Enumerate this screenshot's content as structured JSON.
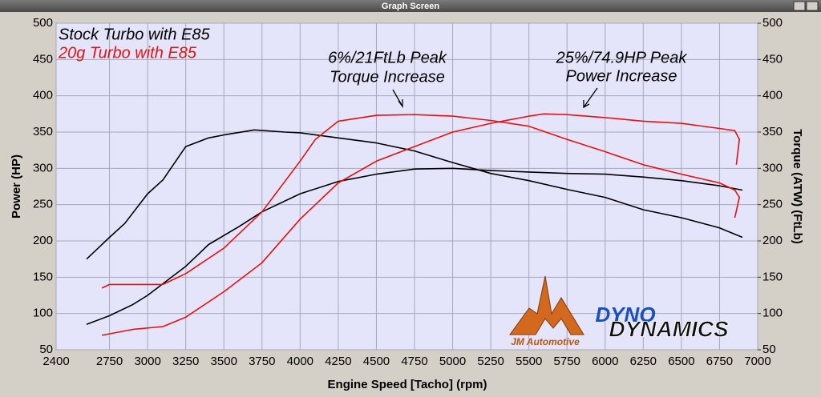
{
  "window_title": "Graph Screen",
  "logo": {
    "company": "JM Automotive",
    "brand_top": "DYNO",
    "brand_bottom": "DYNAMICS"
  },
  "chart_data": {
    "type": "line",
    "x_label": "Engine Speed [Tacho] (rpm)",
    "y_label": "Power (HP)",
    "y2_label": "Torque (ATW) (FtLb)",
    "xlim": [
      2400,
      7000
    ],
    "xticks": [
      2400,
      2750,
      3000,
      3250,
      3500,
      3750,
      4000,
      4250,
      4500,
      4750,
      5000,
      5250,
      5500,
      5750,
      6000,
      6250,
      6500,
      6750,
      7000
    ],
    "ylim": [
      50,
      500
    ],
    "yticks": [
      50,
      100,
      150,
      200,
      250,
      300,
      350,
      400,
      450,
      500
    ],
    "y2lim": [
      50,
      500
    ],
    "y2ticks": [
      50,
      100,
      150,
      200,
      250,
      300,
      350,
      400,
      450,
      500
    ],
    "grid": true,
    "series": [
      {
        "name": "Stock Turbo with E85",
        "color": "#000000",
        "power": {
          "x": [
            2600,
            2750,
            2900,
            3000,
            3250,
            3400,
            3600,
            3750,
            4000,
            4250,
            4500,
            4750,
            5000,
            5250,
            5500,
            5750,
            6000,
            6250,
            6500,
            6750,
            6900
          ],
          "values": [
            85,
            97,
            112,
            125,
            165,
            195,
            220,
            240,
            265,
            282,
            292,
            299,
            300,
            297,
            295,
            293,
            292,
            288,
            283,
            276,
            270
          ]
        },
        "torque": {
          "axis": "y2",
          "x": [
            2600,
            2750,
            2850,
            3000,
            3100,
            3250,
            3400,
            3500,
            3700,
            3900,
            4000,
            4250,
            4500,
            4750,
            5000,
            5250,
            5500,
            5750,
            6000,
            6250,
            6500,
            6750,
            6900
          ],
          "values": [
            175,
            205,
            224,
            265,
            284,
            330,
            342,
            346,
            353,
            350,
            349,
            342,
            335,
            324,
            308,
            293,
            283,
            271,
            260,
            243,
            232,
            218,
            205
          ]
        }
      },
      {
        "name": "20g Turbo with E85",
        "color": "#e81010",
        "power": {
          "x": [
            2700,
            2900,
            3100,
            3250,
            3500,
            3750,
            4000,
            4250,
            4500,
            4750,
            5000,
            5250,
            5500,
            5600,
            5750,
            6000,
            6250,
            6500,
            6750,
            6850,
            6880,
            6860
          ],
          "values": [
            70,
            78,
            82,
            95,
            130,
            170,
            230,
            280,
            310,
            330,
            350,
            362,
            372,
            375,
            374,
            370,
            365,
            362,
            355,
            352,
            340,
            305
          ]
        },
        "torque": {
          "axis": "y2",
          "x": [
            2700,
            2750,
            2900,
            3100,
            3250,
            3500,
            3750,
            4000,
            4100,
            4250,
            4500,
            4750,
            5000,
            5250,
            5500,
            5750,
            6000,
            6250,
            6500,
            6750,
            6850,
            6880,
            6850
          ],
          "values": [
            135,
            140,
            140,
            140,
            155,
            190,
            240,
            310,
            340,
            365,
            373,
            374,
            372,
            366,
            358,
            340,
            323,
            305,
            292,
            280,
            270,
            260,
            232
          ]
        }
      }
    ],
    "annotations": [
      {
        "lines": [
          "6%/21FtLb Peak",
          "Torque Increase"
        ]
      },
      {
        "lines": [
          "25%/74.9HP Peak",
          "Power Increase"
        ]
      }
    ]
  }
}
